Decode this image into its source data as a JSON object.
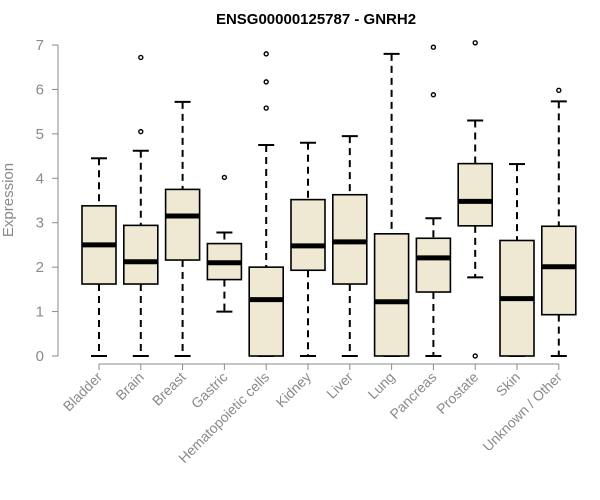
{
  "chart_data": {
    "type": "box",
    "title": "ENSG00000125787 - GNRH2",
    "xlabel": "",
    "ylabel": "Expression",
    "ylim": [
      0,
      7
    ],
    "yticks": [
      "0",
      "1",
      "2",
      "3",
      "4",
      "5",
      "6",
      "7"
    ],
    "grid": false,
    "box_fill": "#efe9d3",
    "box_stroke": "#000000",
    "axis_color": "#8a8a8a",
    "categories": [
      "Bladder",
      "Brain",
      "Breast",
      "Gastric",
      "Hematopoietic cells",
      "Kidney",
      "Liver",
      "Lung",
      "Pancreas",
      "Prostate",
      "Skin",
      "Unknown / Other"
    ],
    "boxes": [
      {
        "min": 0,
        "q1": 1.62,
        "median": 2.5,
        "q3": 3.38,
        "max": 4.45,
        "outliers": []
      },
      {
        "min": 0,
        "q1": 1.62,
        "median": 2.12,
        "q3": 2.94,
        "max": 4.62,
        "outliers": [
          5.05,
          6.72
        ]
      },
      {
        "min": 0,
        "q1": 2.16,
        "median": 3.15,
        "q3": 3.75,
        "max": 5.72,
        "outliers": []
      },
      {
        "min": 1.0,
        "q1": 1.72,
        "median": 2.1,
        "q3": 2.53,
        "max": 2.78,
        "outliers": [
          4.02
        ]
      },
      {
        "min": 0,
        "q1": 0,
        "median": 1.27,
        "q3": 2.0,
        "max": 4.75,
        "outliers": [
          5.58,
          6.17,
          6.8
        ]
      },
      {
        "min": 0,
        "q1": 1.93,
        "median": 2.48,
        "q3": 3.52,
        "max": 4.8,
        "outliers": []
      },
      {
        "min": 0,
        "q1": 1.62,
        "median": 2.57,
        "q3": 3.63,
        "max": 4.95,
        "outliers": []
      },
      {
        "min": 0,
        "q1": 0,
        "median": 1.22,
        "q3": 2.75,
        "max": 6.8,
        "outliers": []
      },
      {
        "min": 0,
        "q1": 1.44,
        "median": 2.21,
        "q3": 2.65,
        "max": 3.1,
        "outliers": [
          5.88,
          6.95
        ]
      },
      {
        "min": 1.77,
        "q1": 2.93,
        "median": 3.48,
        "q3": 4.33,
        "max": 5.3,
        "outliers": [
          0,
          7.05
        ]
      },
      {
        "min": 0,
        "q1": 0,
        "median": 1.29,
        "q3": 2.6,
        "max": 4.32,
        "outliers": []
      },
      {
        "min": 0,
        "q1": 0.93,
        "median": 2.01,
        "q3": 2.92,
        "max": 5.73,
        "outliers": [
          5.98
        ]
      }
    ]
  }
}
